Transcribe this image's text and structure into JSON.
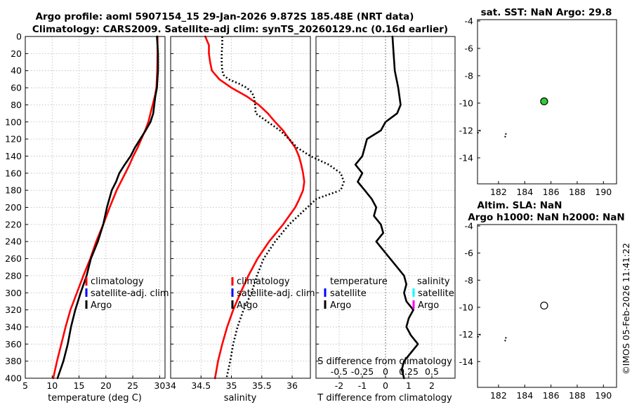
{
  "header": {
    "title_line1": "Argo profile: aoml 5907154_15 29-Jan-2026 9.872S 185.48E (NRT data)",
    "title_line2": "Climatology: CARS2009. Satellite-adj clim: synTS_20260129.nc (0.16d earlier)"
  },
  "footer": {
    "timestamp": "©IMOS 05-Feb-2026 11:41:22"
  },
  "colors": {
    "climatology": "#ff0000",
    "satellite": "#0000ff",
    "argo": "#000000",
    "sat_salinity": "#00ffff",
    "argo_salinity": "#ff00ff",
    "marker_fill": "#33cc33"
  },
  "depth_axis": {
    "ticks": [
      0,
      20,
      40,
      60,
      80,
      100,
      120,
      140,
      160,
      180,
      200,
      220,
      240,
      260,
      280,
      300,
      320,
      340,
      360,
      380,
      400
    ],
    "range": [
      0,
      400
    ]
  },
  "chart_data": [
    {
      "id": "temperature",
      "type": "line",
      "xlabel": "temperature (deg C)",
      "xlim": [
        5,
        31
      ],
      "xticks": [
        5,
        10,
        15,
        20,
        25,
        30
      ],
      "ylim": [
        0,
        400
      ],
      "legend": {
        "items": [
          "climatology",
          "satellite-adj. clim",
          "Argo"
        ]
      },
      "series": [
        {
          "name": "climatology",
          "color": "#ff0000",
          "style": "solid",
          "depth": [
            0,
            20,
            40,
            60,
            70,
            80,
            90,
            100,
            110,
            120,
            130,
            140,
            150,
            160,
            170,
            180,
            200,
            220,
            240,
            260,
            280,
            300,
            320,
            340,
            360,
            380,
            400
          ],
          "values": [
            29.6,
            29.6,
            29.55,
            29.4,
            29.1,
            28.7,
            28.3,
            27.9,
            27.3,
            26.6,
            25.9,
            25.1,
            24.4,
            23.6,
            22.8,
            22.0,
            20.7,
            19.5,
            18.2,
            17.1,
            15.8,
            14.6,
            13.4,
            12.5,
            11.7,
            10.9,
            10.2
          ]
        },
        {
          "name": "Argo",
          "color": "#000000",
          "style": "solid",
          "depth": [
            0,
            20,
            40,
            60,
            70,
            80,
            90,
            100,
            110,
            120,
            130,
            140,
            150,
            160,
            170,
            180,
            200,
            220,
            240,
            260,
            280,
            300,
            320,
            340,
            360,
            380,
            400
          ],
          "values": [
            29.5,
            29.7,
            29.7,
            29.5,
            29.2,
            29.0,
            28.8,
            28.3,
            27.4,
            26.4,
            25.4,
            24.6,
            23.5,
            22.5,
            21.9,
            21.1,
            20.2,
            19.5,
            18.5,
            17.2,
            16.4,
            15.3,
            14.3,
            13.5,
            12.9,
            12.1,
            11.0
          ]
        }
      ]
    },
    {
      "id": "salinity",
      "type": "line",
      "xlabel": "salinity",
      "xlim": [
        34.0,
        36.3
      ],
      "xticks": [
        34,
        34.5,
        35,
        35.5,
        36
      ],
      "xticklabels": [
        "34",
        "34.5",
        "35",
        "35.5",
        "36"
      ],
      "ylim": [
        0,
        400
      ],
      "legend": {
        "items": [
          "climatology",
          "satellite-adj. clim",
          "Argo"
        ]
      },
      "series": [
        {
          "name": "climatology",
          "color": "#ff0000",
          "style": "solid",
          "depth": [
            0,
            10,
            20,
            30,
            40,
            50,
            60,
            70,
            80,
            90,
            100,
            110,
            120,
            130,
            140,
            150,
            160,
            170,
            180,
            190,
            200,
            220,
            240,
            260,
            280,
            300,
            320,
            340,
            360,
            380,
            400
          ],
          "values": [
            34.57,
            34.63,
            34.63,
            34.65,
            34.68,
            34.8,
            35.0,
            35.25,
            35.45,
            35.6,
            35.72,
            35.85,
            35.95,
            36.05,
            36.11,
            36.15,
            36.18,
            36.2,
            36.18,
            36.12,
            36.05,
            35.85,
            35.62,
            35.43,
            35.28,
            35.15,
            35.03,
            34.93,
            34.85,
            34.78,
            34.73
          ]
        },
        {
          "name": "Argo",
          "color": "#000000",
          "style": "dotted",
          "depth": [
            0,
            10,
            20,
            30,
            40,
            45,
            50,
            55,
            60,
            65,
            70,
            80,
            90,
            100,
            110,
            120,
            130,
            140,
            150,
            160,
            170,
            180,
            190,
            200,
            210,
            220,
            240,
            260,
            280,
            300,
            320,
            340,
            360,
            380,
            400
          ],
          "values": [
            34.85,
            34.85,
            34.84,
            34.84,
            34.85,
            34.87,
            34.95,
            35.12,
            35.25,
            35.33,
            35.37,
            35.39,
            35.4,
            35.6,
            35.8,
            35.95,
            36.08,
            36.3,
            36.6,
            36.8,
            36.85,
            36.8,
            36.4,
            36.25,
            36.1,
            35.95,
            35.72,
            35.53,
            35.42,
            35.33,
            35.2,
            35.1,
            35.03,
            34.98,
            34.92
          ]
        }
      ]
    },
    {
      "id": "difference",
      "type": "line",
      "xlabel": "T difference from climatology",
      "xlabel_top": "S difference from climatology",
      "xlim": [
        -3,
        3
      ],
      "xticks": [
        -2,
        -1,
        0,
        1,
        2
      ],
      "top_ticks": [
        -0.5,
        -0.25,
        0,
        0.25,
        0.5
      ],
      "top_ticklabels": [
        "-0.5",
        "-0.25",
        "0",
        "0.25",
        "0.5"
      ],
      "ylim": [
        0,
        400
      ],
      "legend": {
        "temperature_title": "temperature",
        "salinity_title": "salinity",
        "temperature_items": [
          "satellite",
          "Argo"
        ],
        "salinity_items": [
          "satellite",
          "Argo"
        ]
      },
      "series": [
        {
          "name": "T difference Argo",
          "color": "#000000",
          "style": "solid",
          "depth": [
            0,
            20,
            40,
            60,
            70,
            80,
            90,
            100,
            110,
            120,
            130,
            140,
            150,
            160,
            170,
            180,
            190,
            200,
            210,
            220,
            230,
            240,
            250,
            260,
            270,
            280,
            290,
            300,
            310,
            320,
            330,
            340,
            350,
            360,
            370,
            380,
            390,
            400
          ],
          "values": [
            0.3,
            0.35,
            0.4,
            0.55,
            0.6,
            0.65,
            0.5,
            0.0,
            -0.2,
            -0.8,
            -0.9,
            -1.0,
            -1.3,
            -1.0,
            -1.2,
            -0.9,
            -0.6,
            -0.4,
            -0.5,
            -0.2,
            -0.1,
            -0.4,
            -0.1,
            0.2,
            0.5,
            0.8,
            0.9,
            0.8,
            0.9,
            1.2,
            1.0,
            0.9,
            1.1,
            1.4,
            1.1,
            0.8,
            0.7,
            0.8
          ]
        }
      ]
    },
    {
      "id": "map_sst",
      "type": "scatter",
      "title": "sat. SST: NaN Argo: 29.8",
      "xlim": [
        180.4,
        191
      ],
      "ylim": [
        -15.9,
        -3.9
      ],
      "xticks": [
        182,
        184,
        186,
        188,
        190
      ],
      "yticks": [
        -4,
        -6,
        -8,
        -10,
        -12,
        -14
      ],
      "points": [
        {
          "lon": 185.48,
          "lat": -9.872,
          "filled": true
        }
      ],
      "coastline": [
        [
          [
            180.4,
            -12.2
          ],
          [
            180.7,
            -11.9
          ]
        ],
        [
          [
            182.5,
            -12.5
          ],
          [
            182.6,
            -12.1
          ]
        ]
      ]
    },
    {
      "id": "map_sla",
      "type": "scatter",
      "title": "Altim. SLA: NaN",
      "subtitle": "Argo h1000: NaN h2000: NaN",
      "xlim": [
        180.4,
        191
      ],
      "ylim": [
        -15.9,
        -3.9
      ],
      "xticks": [
        182,
        184,
        186,
        188,
        190
      ],
      "yticks": [
        -4,
        -6,
        -8,
        -10,
        -12,
        -14
      ],
      "points": [
        {
          "lon": 185.48,
          "lat": -9.872,
          "filled": false
        }
      ],
      "coastline": [
        [
          [
            180.4,
            -12.2
          ],
          [
            180.7,
            -11.9
          ]
        ],
        [
          [
            182.5,
            -12.5
          ],
          [
            182.6,
            -12.1
          ]
        ]
      ]
    }
  ]
}
